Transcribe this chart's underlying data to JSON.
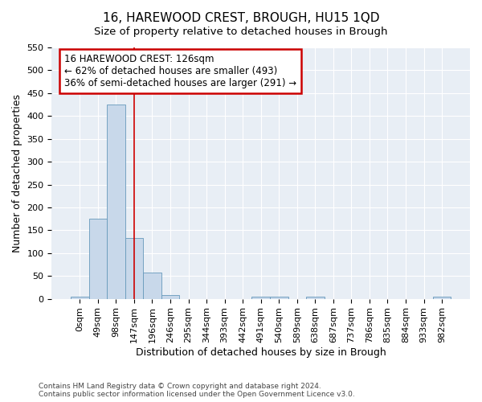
{
  "title": "16, HAREWOOD CREST, BROUGH, HU15 1QD",
  "subtitle": "Size of property relative to detached houses in Brough",
  "xlabel": "Distribution of detached houses by size in Brough",
  "ylabel": "Number of detached properties",
  "categories": [
    "0sqm",
    "49sqm",
    "98sqm",
    "147sqm",
    "196sqm",
    "246sqm",
    "295sqm",
    "344sqm",
    "393sqm",
    "442sqm",
    "491sqm",
    "540sqm",
    "589sqm",
    "638sqm",
    "687sqm",
    "737sqm",
    "786sqm",
    "835sqm",
    "884sqm",
    "933sqm",
    "982sqm"
  ],
  "values": [
    5,
    175,
    425,
    133,
    58,
    8,
    0,
    0,
    0,
    0,
    4,
    4,
    0,
    4,
    0,
    0,
    0,
    0,
    0,
    0,
    4
  ],
  "bar_color": "#c8d8ea",
  "bar_edge_color": "#6699bb",
  "background_color": "#e8eef5",
  "ylim": [
    0,
    550
  ],
  "yticks": [
    0,
    50,
    100,
    150,
    200,
    250,
    300,
    350,
    400,
    450,
    500,
    550
  ],
  "property_line_x": 3.0,
  "annotation_line1": "16 HAREWOOD CREST: 126sqm",
  "annotation_line2": "← 62% of detached houses are smaller (493)",
  "annotation_line3": "36% of semi-detached houses are larger (291) →",
  "annotation_box_color": "#cc0000",
  "footer_line1": "Contains HM Land Registry data © Crown copyright and database right 2024.",
  "footer_line2": "Contains public sector information licensed under the Open Government Licence v3.0.",
  "grid_color": "#ffffff",
  "title_fontsize": 11,
  "subtitle_fontsize": 9.5,
  "axis_label_fontsize": 9,
  "tick_fontsize": 8,
  "annotation_fontsize": 8.5
}
